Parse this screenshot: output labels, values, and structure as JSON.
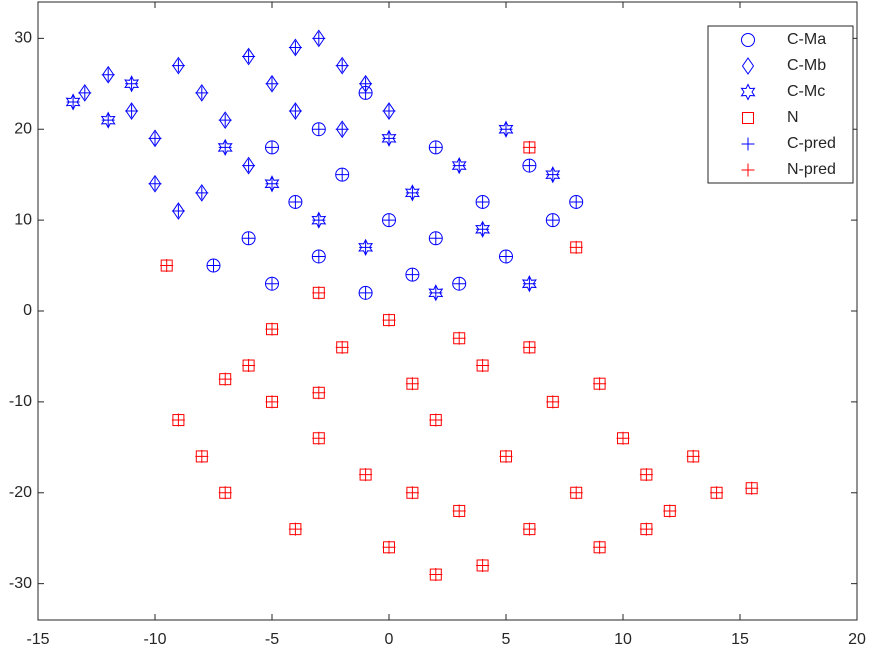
{
  "chart_data": {
    "type": "scatter",
    "xlim": [
      -15,
      20
    ],
    "xticks": [
      -15,
      -10,
      -5,
      0,
      5,
      10,
      15,
      20
    ],
    "ylim": [
      -34,
      34
    ],
    "yticks": [
      -30,
      -20,
      -10,
      0,
      10,
      20,
      30
    ],
    "legend": "northeast",
    "grid": false,
    "series": [
      {
        "name": "C-Ma",
        "color": "#0000ff",
        "marker": "circle",
        "x": [
          -7.5,
          -6,
          -5,
          -4,
          -3,
          -2,
          -1,
          0,
          1,
          2,
          3,
          4,
          5,
          6,
          7,
          8,
          -3,
          -1,
          2,
          -5
        ],
        "y": [
          5,
          8,
          3,
          12,
          6,
          15,
          2,
          10,
          4,
          8,
          3,
          12,
          6,
          16,
          10,
          12,
          20,
          24,
          18,
          18
        ]
      },
      {
        "name": "C-Mb",
        "color": "#0000ff",
        "marker": "diamond",
        "x": [
          -12,
          -11,
          -10,
          -9,
          -8,
          -7,
          -6,
          -5,
          -4,
          -3,
          -2,
          -1,
          0,
          -8,
          -9,
          -6,
          -10,
          -4,
          -13,
          -2
        ],
        "y": [
          26,
          22,
          19,
          27,
          24,
          21,
          28,
          25,
          29,
          30,
          27,
          25,
          22,
          13,
          11,
          16,
          14,
          22,
          24,
          20
        ]
      },
      {
        "name": "C-Mc",
        "color": "#0000ff",
        "marker": "hexagram",
        "x": [
          -13.5,
          -12,
          -11,
          -7,
          -5,
          -3,
          -1,
          1,
          3,
          5,
          7,
          6,
          4,
          2,
          0
        ],
        "y": [
          23,
          21,
          25,
          18,
          14,
          10,
          7,
          13,
          16,
          20,
          15,
          3,
          9,
          2,
          19
        ]
      },
      {
        "name": "N",
        "color": "#ff0000",
        "marker": "square",
        "x": [
          -9,
          -8,
          -7,
          -6,
          -5,
          -4,
          -3,
          -2,
          -1,
          0,
          1,
          2,
          3,
          4,
          5,
          6,
          7,
          8,
          9,
          10,
          11,
          12,
          13,
          14,
          15.5,
          -7,
          -3,
          1,
          4,
          6,
          9,
          2,
          -5,
          0,
          -9.5,
          8,
          6,
          -3,
          3,
          11
        ],
        "y": [
          -12,
          -16,
          -20,
          -6,
          -10,
          -24,
          -14,
          -4,
          -18,
          -26,
          -8,
          -12,
          -22,
          -28,
          -16,
          -4,
          -10,
          -20,
          -26,
          -14,
          -18,
          -22,
          -16,
          -20,
          -19.5,
          -7.5,
          -9,
          -20,
          -6,
          -24,
          -8,
          -29,
          -2,
          -1,
          5,
          7,
          18,
          2,
          -3,
          -24
        ]
      },
      {
        "name": "C-pred",
        "color": "#0000ff",
        "marker": "plus",
        "x": [
          -7.5,
          -6,
          -5,
          -4,
          -3,
          -2,
          -1,
          0,
          1,
          2,
          3,
          4,
          5,
          6,
          7,
          8,
          -3,
          -1,
          2,
          -5,
          -12,
          -11,
          -10,
          -9,
          -8,
          -7,
          -6,
          -5,
          -4,
          -3,
          -2,
          -1,
          0,
          -8,
          -9,
          -6,
          -10,
          -4,
          -13,
          -2,
          -13.5,
          -12,
          -11,
          -7,
          -5,
          -3,
          -1,
          1,
          3,
          5,
          7,
          6,
          4,
          2,
          0
        ],
        "y": [
          5,
          8,
          3,
          12,
          6,
          15,
          2,
          10,
          4,
          8,
          3,
          12,
          6,
          16,
          10,
          12,
          20,
          24,
          18,
          18,
          26,
          22,
          19,
          27,
          24,
          21,
          28,
          25,
          29,
          30,
          27,
          25,
          22,
          13,
          11,
          16,
          14,
          22,
          24,
          20,
          23,
          21,
          25,
          18,
          14,
          10,
          7,
          13,
          16,
          20,
          15,
          3,
          9,
          2,
          19
        ]
      },
      {
        "name": "N-pred",
        "color": "#ff0000",
        "marker": "plus",
        "x": [
          -9,
          -8,
          -7,
          -6,
          -5,
          -4,
          -3,
          -2,
          -1,
          0,
          1,
          2,
          3,
          4,
          5,
          6,
          7,
          8,
          9,
          10,
          11,
          12,
          13,
          14,
          15.5,
          -7,
          -3,
          1,
          4,
          6,
          9,
          2,
          -5,
          0,
          -9.5,
          8,
          6,
          -3,
          3,
          11
        ],
        "y": [
          -12,
          -16,
          -20,
          -6,
          -10,
          -24,
          -14,
          -4,
          -18,
          -26,
          -8,
          -12,
          -22,
          -28,
          -16,
          -4,
          -10,
          -20,
          -26,
          -14,
          -18,
          -22,
          -16,
          -20,
          -19.5,
          -7.5,
          -9,
          -20,
          -6,
          -24,
          -8,
          -29,
          -2,
          -1,
          5,
          7,
          18,
          2,
          -3,
          -24
        ]
      }
    ]
  }
}
